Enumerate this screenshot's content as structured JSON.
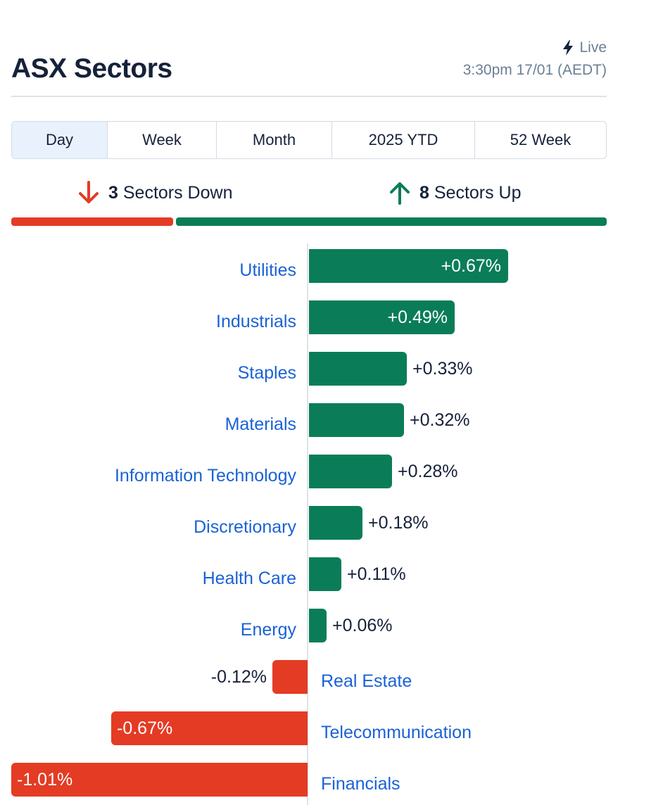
{
  "header": {
    "title": "ASX Sectors",
    "live_label": "Live",
    "timestamp": "3:30pm 17/01 (AEDT)"
  },
  "tabs": [
    {
      "label": "Day",
      "active": true
    },
    {
      "label": "Week",
      "active": false
    },
    {
      "label": "Month",
      "active": false
    },
    {
      "label": "2025 YTD",
      "active": false
    },
    {
      "label": "52 Week",
      "active": false
    }
  ],
  "summary": {
    "down_count": "3",
    "down_label": "Sectors Down",
    "up_count": "8",
    "up_label": "Sectors Up"
  },
  "colors": {
    "positive": "#0a7d58",
    "negative": "#e43b24",
    "link": "#1a62d6"
  },
  "chart_data": {
    "type": "bar",
    "orientation": "horizontal",
    "categories": [
      "Utilities",
      "Industrials",
      "Staples",
      "Materials",
      "Information Technology",
      "Discretionary",
      "Health Care",
      "Energy",
      "Real Estate",
      "Telecommunication",
      "Financials"
    ],
    "values": [
      0.67,
      0.49,
      0.33,
      0.32,
      0.28,
      0.18,
      0.11,
      0.06,
      -0.12,
      -0.67,
      -1.01
    ],
    "value_labels": [
      "+0.67%",
      "+0.49%",
      "+0.33%",
      "+0.32%",
      "+0.28%",
      "+0.18%",
      "+0.11%",
      "+0.06%",
      "-0.12%",
      "-0.67%",
      "-1.01%"
    ]
  }
}
